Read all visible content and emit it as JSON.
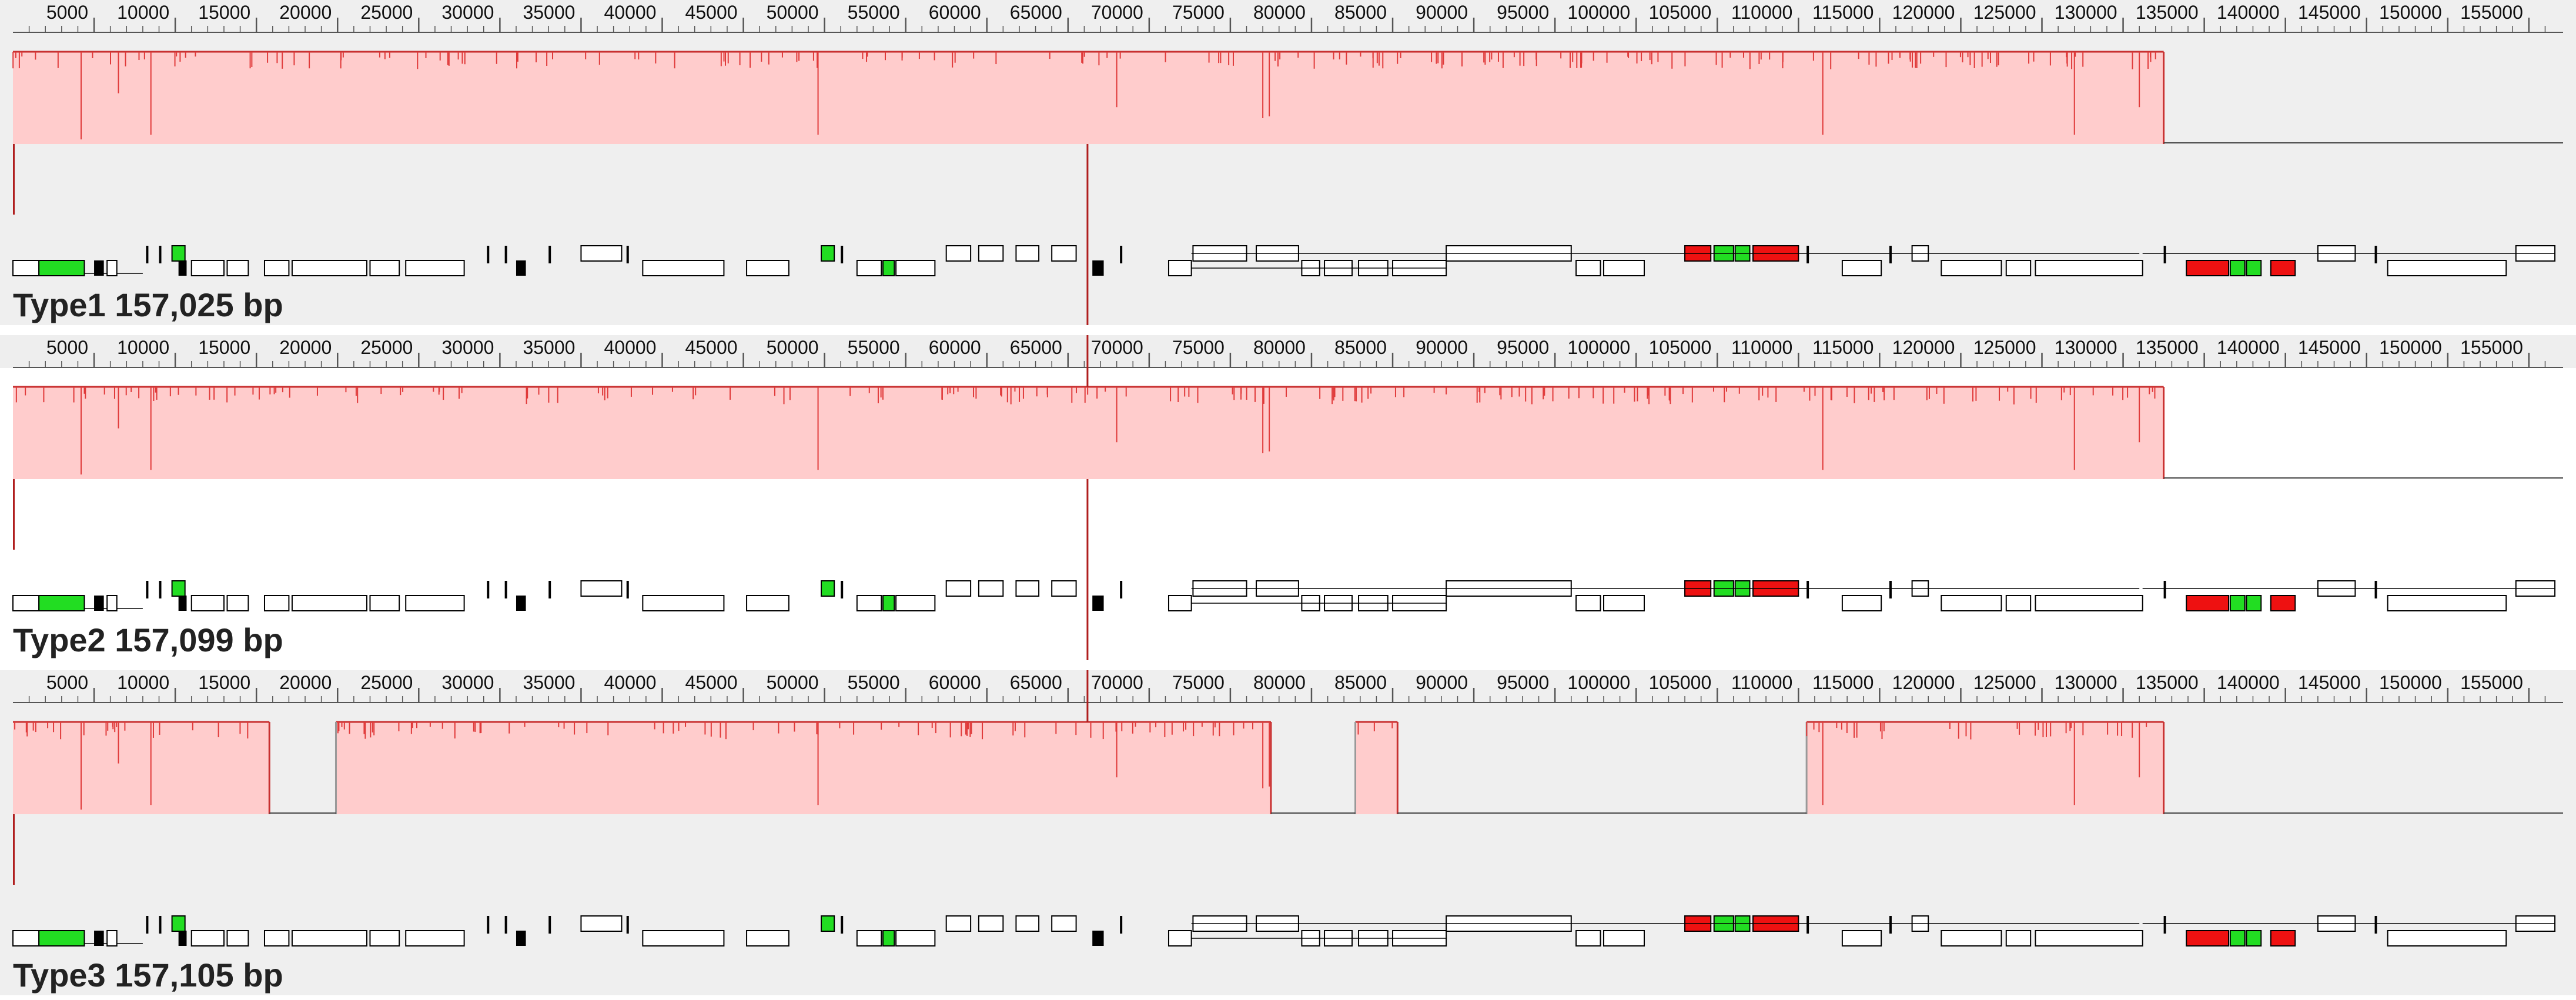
{
  "viewer": {
    "ruler_ticks": [
      "5000",
      "10000",
      "15000",
      "20000",
      "25000",
      "30000",
      "35000",
      "40000",
      "45000",
      "50000",
      "55000",
      "60000",
      "65000",
      "70000",
      "75000",
      "80000",
      "85000",
      "90000",
      "95000",
      "100000",
      "105000",
      "110000",
      "115000",
      "120000",
      "125000",
      "130000",
      "135000",
      "140000",
      "145000",
      "150000",
      "155000"
    ],
    "colors": {
      "block_fill": "#ffcccc",
      "block_border": "#c83030",
      "conservation_line": "#e03a3a",
      "connector_line": "#b01e1e",
      "gene_green": "#22dd22",
      "gene_red": "#ee1111",
      "gene_outline": "#000000",
      "panel_gray": "#efefef",
      "panel_white": "#ffffff"
    },
    "panels": [
      {
        "label": "Type1 157,025 bp",
        "background": "gray",
        "blocks": [
          [
            0,
            132500
          ]
        ]
      },
      {
        "label": "Type2 157,099 bp",
        "background": "white",
        "blocks": [
          [
            0,
            132500
          ]
        ]
      },
      {
        "label": "Type3 157,105 bp",
        "background": "gray",
        "blocks": [
          [
            0,
            15800
          ],
          [
            19900,
            77500
          ],
          [
            82700,
            85300
          ],
          [
            110500,
            132500
          ]
        ]
      }
    ]
  }
}
